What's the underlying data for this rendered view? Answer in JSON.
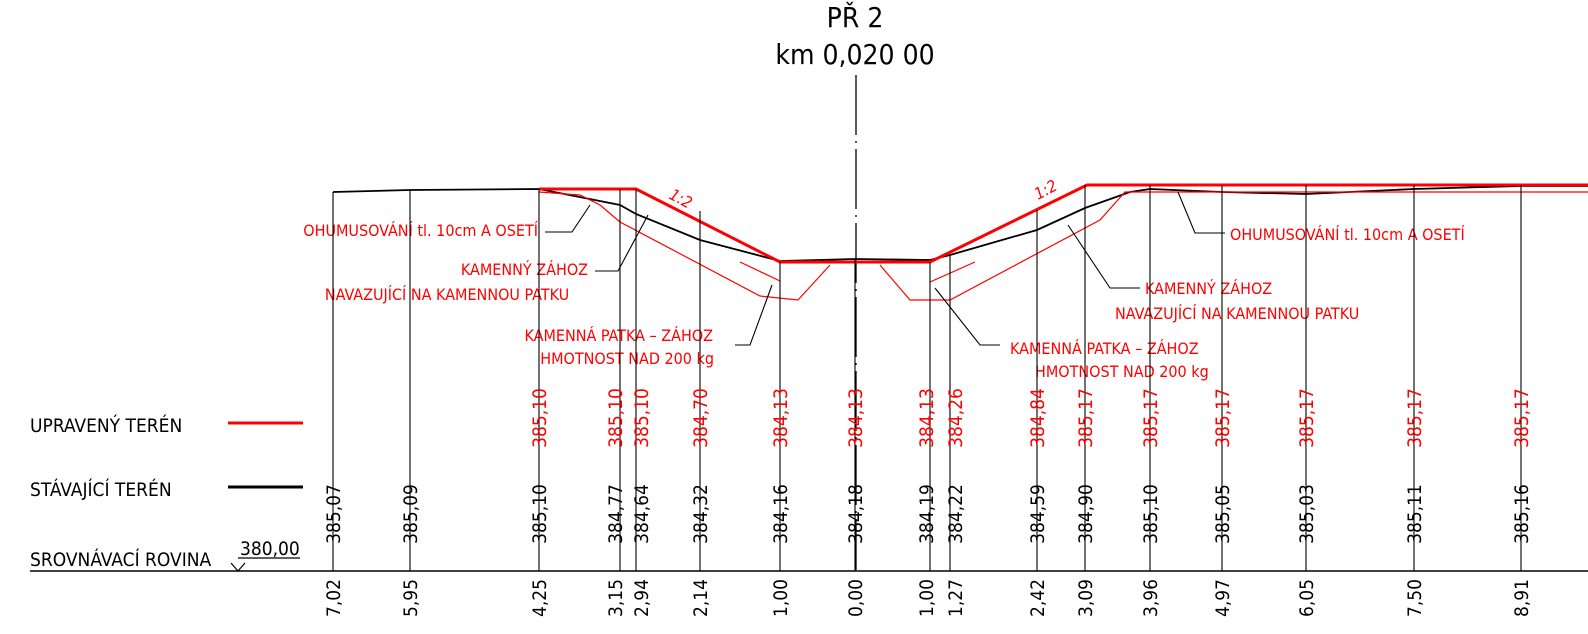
{
  "header": {
    "profile_label": "PŘ 2",
    "chainage_label": "km 0,020 00"
  },
  "legend": {
    "modified_terrain": "UPRAVENÝ TERÉN",
    "existing_terrain": "STÁVAJÍCÍ TERÉN",
    "datum_plane": "SROVNÁVACÍ ROVINA",
    "datum_value": "380,00",
    "modified_color": "#ff0000",
    "existing_color": "#000000"
  },
  "annotations": {
    "topsoil_left": "OHUMUSOVÁNÍ tl. 10cm A OSETÍ",
    "topsoil_right": "OHUMUSOVÁNÍ tl. 10cm A OSETÍ",
    "riprap_left_1": "KAMENNÝ ZÁHOZ",
    "riprap_left_2": "NAVAZUJÍCÍ NA KAMENNOU PATKU",
    "riprap_right_1": "KAMENNÝ ZÁHOZ",
    "riprap_right_2": "NAVAZUJÍCÍ NA KAMENNOU PATKU",
    "toe_left_1": "KAMENNÁ PATKA – ZÁHOZ",
    "toe_left_2": "HMOTNOST NAD 200 kg",
    "toe_right_1": "KAMENNÁ PATKA – ZÁHOZ",
    "toe_right_2": "HMOTNOST NAD 200 kg",
    "slope_left": "1:2",
    "slope_right": "1:2"
  },
  "stations": [
    {
      "offset": "7,02",
      "existing": "385,07",
      "design": ""
    },
    {
      "offset": "5,95",
      "existing": "385,09",
      "design": ""
    },
    {
      "offset": "4,25",
      "existing": "385,10",
      "design": "385,10"
    },
    {
      "offset": "3,15",
      "existing": "384,77",
      "design": "385,10"
    },
    {
      "offset": "2,94",
      "existing": "384,64",
      "design": "385,10"
    },
    {
      "offset": "2,14",
      "existing": "384,32",
      "design": "384,70"
    },
    {
      "offset": "1,00",
      "existing": "384,16",
      "design": "384,13"
    },
    {
      "offset": "0,00",
      "existing": "384,18",
      "design": "384,13"
    },
    {
      "offset": "1,00",
      "existing": "384,19",
      "design": "384,13"
    },
    {
      "offset": "1,27",
      "existing": "384,22",
      "design": "384,26"
    },
    {
      "offset": "2,42",
      "existing": "384,59",
      "design": "384,84"
    },
    {
      "offset": "3,09",
      "existing": "384,90",
      "design": "385,17"
    },
    {
      "offset": "3,96",
      "existing": "385,10",
      "design": "385,17"
    },
    {
      "offset": "4,97",
      "existing": "385,05",
      "design": "385,17"
    },
    {
      "offset": "6,05",
      "existing": "385,03",
      "design": "385,17"
    },
    {
      "offset": "7,50",
      "existing": "385,11",
      "design": "385,17"
    },
    {
      "offset": "8,91",
      "existing": "385,16",
      "design": "385,17"
    }
  ]
}
